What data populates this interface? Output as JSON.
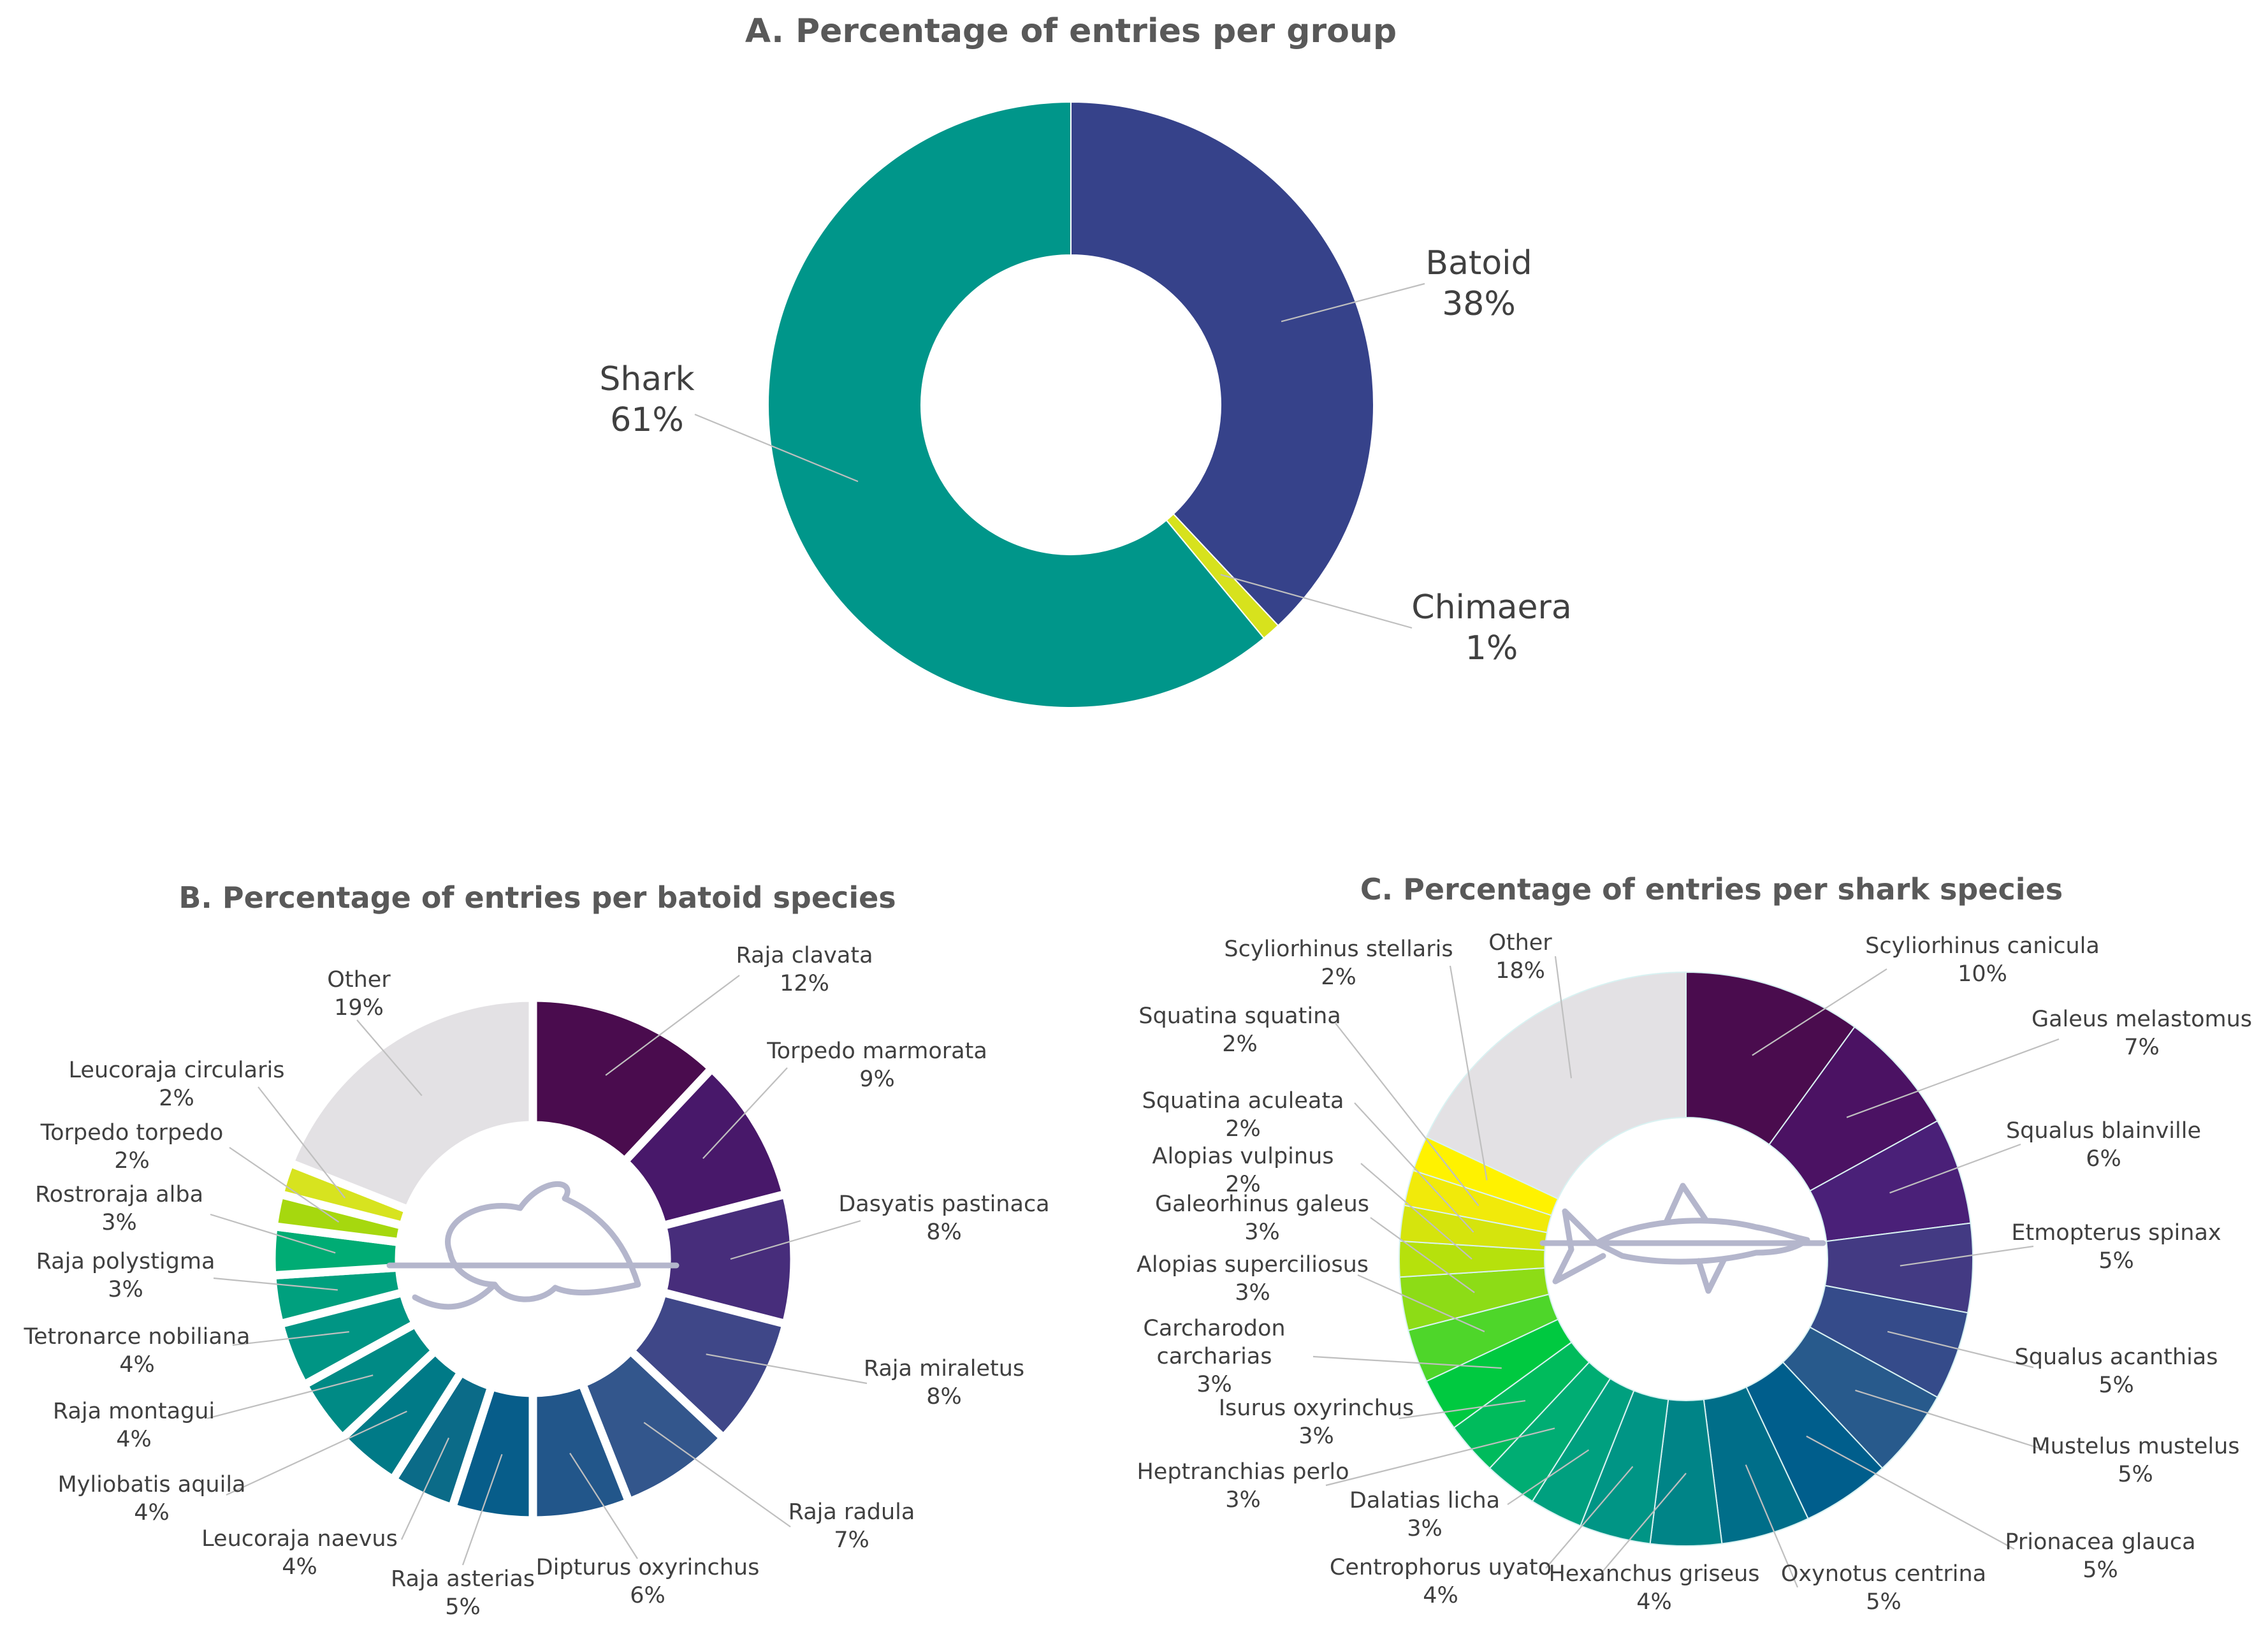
{
  "chart_data": [
    {
      "id": "groups",
      "type": "pie",
      "variant": "donut",
      "title": "A. Percentage of entries per group",
      "slices": [
        {
          "label": "Batoid",
          "value": 38,
          "pct_label": "38%",
          "color": "#36428a"
        },
        {
          "label": "Chimaera",
          "value": 1,
          "pct_label": "1%",
          "color": "#d7e21d"
        },
        {
          "label": "Shark",
          "value": 61,
          "pct_label": "61%",
          "color": "#00968a"
        }
      ]
    },
    {
      "id": "batoid",
      "type": "pie",
      "variant": "donut",
      "title": "B. Percentage of entries per batoid species",
      "slices": [
        {
          "label": "Raja clavata",
          "value": 12,
          "pct_label": "12%",
          "color": "#4a0c4e"
        },
        {
          "label": "Torpedo marmorata",
          "value": 9,
          "pct_label": "9%",
          "color": "#48186a"
        },
        {
          "label": "Dasyatis pastinaca",
          "value": 8,
          "pct_label": "8%",
          "color": "#472d7b"
        },
        {
          "label": "Raja miraletus",
          "value": 8,
          "pct_label": "8%",
          "color": "#3f4788"
        },
        {
          "label": "Raja radula",
          "value": 7,
          "pct_label": "7%",
          "color": "#33568c"
        },
        {
          "label": "Dipturus oxyrinchus",
          "value": 6,
          "pct_label": "6%",
          "color": "#22568a"
        },
        {
          "label": "Raja asterias",
          "value": 5,
          "pct_label": "5%",
          "color": "#075d8a"
        },
        {
          "label": "Leucoraja naevus",
          "value": 4,
          "pct_label": "4%",
          "color": "#0b6b88"
        },
        {
          "label": "Myliobatis aquila",
          "value": 4,
          "pct_label": "4%",
          "color": "#007a87"
        },
        {
          "label": "Raja montagui",
          "value": 4,
          "pct_label": "4%",
          "color": "#008a85"
        },
        {
          "label": "Tetronarce nobiliana",
          "value": 4,
          "pct_label": "4%",
          "color": "#009584"
        },
        {
          "label": "Raja polystigma",
          "value": 3,
          "pct_label": "3%",
          "color": "#00a07e"
        },
        {
          "label": "Rostroraja alba",
          "value": 3,
          "pct_label": "3%",
          "color": "#00ac74"
        },
        {
          "label": "Torpedo torpedo",
          "value": 2,
          "pct_label": "2%",
          "color": "#a6d80e"
        },
        {
          "label": "Leucoraja circularis",
          "value": 2,
          "pct_label": "2%",
          "color": "#d7e31f"
        },
        {
          "label": "Other",
          "value": 19,
          "pct_label": "19%",
          "color": "#e3e1e4"
        }
      ]
    },
    {
      "id": "shark",
      "type": "pie",
      "variant": "donut",
      "title": "C. Percentage of entries per shark species",
      "slices": [
        {
          "label": "Scyliorhinus canicula",
          "value": 10,
          "pct_label": "10%",
          "color": "#4a0c4e"
        },
        {
          "label": "Galeus melastomus",
          "value": 7,
          "pct_label": "7%",
          "color": "#4b1263"
        },
        {
          "label": "Squalus blainville",
          "value": 6,
          "pct_label": "6%",
          "color": "#4a2078"
        },
        {
          "label": "Etmopterus spinax",
          "value": 5,
          "pct_label": "5%",
          "color": "#433a83"
        },
        {
          "label": "Squalus acanthias",
          "value": 5,
          "pct_label": "5%",
          "color": "#354b8a"
        },
        {
          "label": "Mustelus mustelus",
          "value": 5,
          "pct_label": "5%",
          "color": "#285a8c"
        },
        {
          "label": "Prionacea glauca",
          "value": 5,
          "pct_label": "5%",
          "color": "#005e8c"
        },
        {
          "label": "Oxynotus centrina",
          "value": 5,
          "pct_label": "5%",
          "color": "#006e89"
        },
        {
          "label": "Hexanchus griseus",
          "value": 4,
          "pct_label": "4%",
          "color": "#008487"
        },
        {
          "label": "Centrophorus uyato",
          "value": 4,
          "pct_label": "4%",
          "color": "#009585"
        },
        {
          "label": "Dalatias licha",
          "value": 3,
          "pct_label": "3%",
          "color": "#00a07f"
        },
        {
          "label": "Heptranchias perlo",
          "value": 3,
          "pct_label": "3%",
          "color": "#00ad73"
        },
        {
          "label": "Isurus oxyrinchus",
          "value": 3,
          "pct_label": "3%",
          "color": "#00bb5c"
        },
        {
          "label": "Carcharodon carcharias",
          "value": 3,
          "pct_label": "3%",
          "color": "#00c940"
        },
        {
          "label": "Alopias superciliosus",
          "value": 3,
          "pct_label": "3%",
          "color": "#4ed62a"
        },
        {
          "label": "Galeorhinus galeus",
          "value": 3,
          "pct_label": "3%",
          "color": "#8ddc16"
        },
        {
          "label": "Alopias vulpinus",
          "value": 2,
          "pct_label": "2%",
          "color": "#b6e10c"
        },
        {
          "label": "Squatina aculeata",
          "value": 2,
          "pct_label": "2%",
          "color": "#d5e40d"
        },
        {
          "label": "Squatina squatina",
          "value": 2,
          "pct_label": "2%",
          "color": "#f1ea0a"
        },
        {
          "label": "Scyliorhinus stellaris",
          "value": 2,
          "pct_label": "2%",
          "color": "#fff200"
        },
        {
          "label": "Other",
          "value": 18,
          "pct_label": "18%",
          "color": "#e3e1e4"
        }
      ]
    }
  ]
}
